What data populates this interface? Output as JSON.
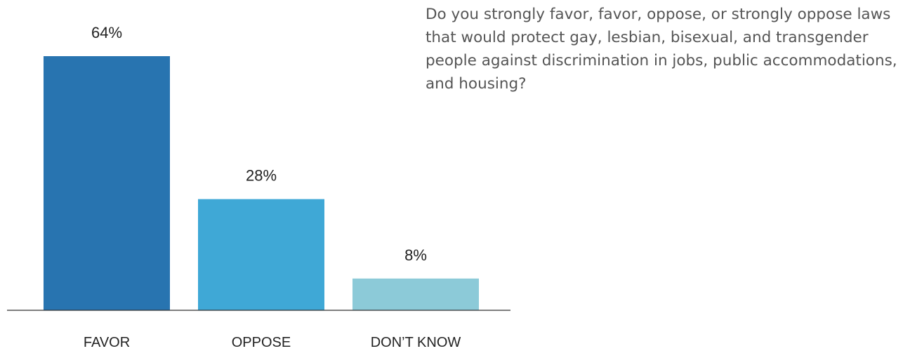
{
  "question": "Do you strongly favor, favor, oppose, or strongly oppose laws that would protect gay, lesbian, bisexual, and transgender people against discrimination in jobs, public accommodations, and housing?",
  "chart_data": {
    "type": "bar",
    "title": "",
    "xlabel": "",
    "ylabel": "",
    "categories": [
      "FAVOR",
      "OPPOSE",
      "DON’T KNOW"
    ],
    "values": [
      64,
      28,
      8
    ],
    "value_labels": [
      "64%",
      "28%",
      "8%"
    ],
    "unit": "%",
    "ylim": [
      0,
      100
    ],
    "grid": false,
    "legend": "none",
    "colors": [
      "#2874b0",
      "#3fa8d6",
      "#8ccad8"
    ],
    "axis_color": "#333333",
    "label_color": "#222222"
  }
}
